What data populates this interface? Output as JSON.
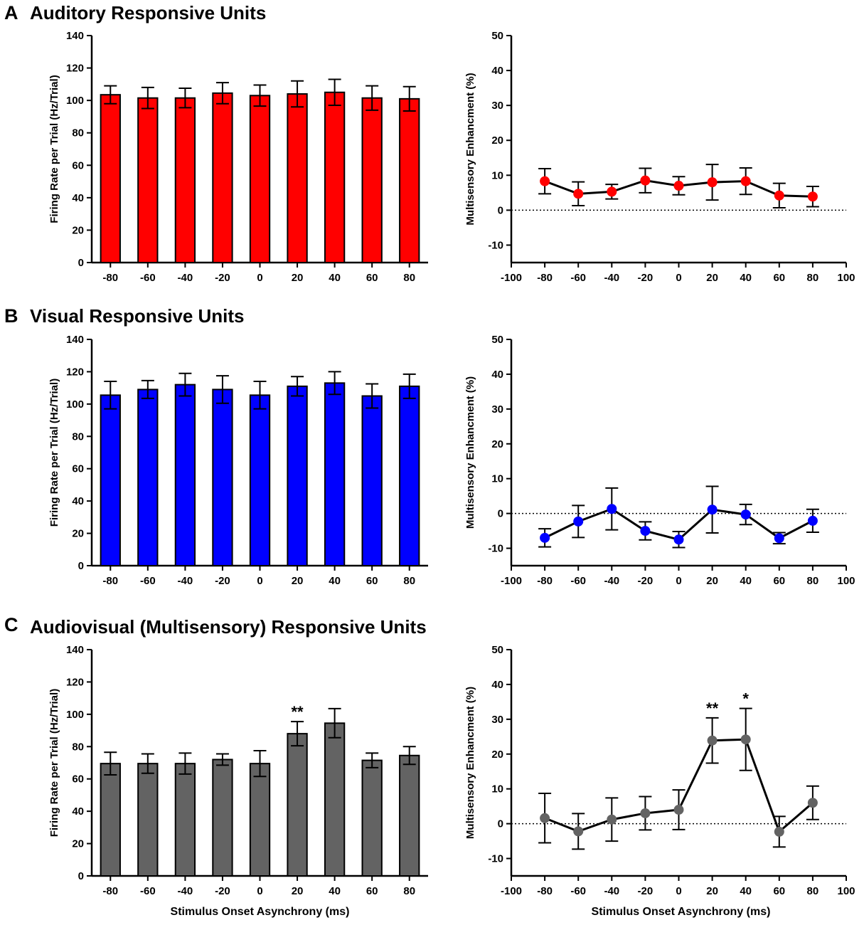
{
  "panels": [
    {
      "letter": "A",
      "title": "Auditory Responsive Units",
      "color": "#ff0000",
      "bar": {
        "type": "bar",
        "ylabel": "Firing Rate per Trial (Hz/Trial)",
        "xlabel": "",
        "ylim": [
          0,
          140
        ],
        "yticks": [
          0,
          20,
          40,
          60,
          80,
          100,
          120,
          140
        ],
        "categories": [
          "-80",
          "-60",
          "-40",
          "-20",
          "0",
          "20",
          "40",
          "60",
          "80"
        ],
        "values": [
          103.5,
          101.5,
          101.5,
          104.5,
          103,
          104,
          105,
          101.5,
          101
        ],
        "errors": [
          5.5,
          6.5,
          6,
          6.5,
          6.5,
          8,
          8,
          7.5,
          7.5
        ],
        "annotations": [
          "",
          "",
          "",
          "",
          "",
          "",
          "",
          "",
          ""
        ]
      },
      "line": {
        "type": "line",
        "ylabel": "Multisensory Enhancment (%)",
        "xlabel": "",
        "xlim": [
          -100,
          100
        ],
        "ylim": [
          -15,
          50
        ],
        "xticks": [
          -100,
          -80,
          -60,
          -40,
          -20,
          0,
          20,
          40,
          60,
          80,
          100
        ],
        "yticks": [
          -10,
          0,
          10,
          20,
          30,
          40,
          50
        ],
        "x": [
          -80,
          -60,
          -40,
          -20,
          0,
          20,
          40,
          60,
          80
        ],
        "y": [
          8.3,
          4.7,
          5.3,
          8.5,
          7,
          8,
          8.3,
          4.2,
          3.9
        ],
        "errors": [
          3.6,
          3.4,
          2.1,
          3.5,
          2.6,
          5.1,
          3.8,
          3.5,
          2.9
        ],
        "annotations": [
          "",
          "",
          "",
          "",
          "",
          "",
          "",
          "",
          ""
        ]
      }
    },
    {
      "letter": "B",
      "title": "Visual Responsive Units",
      "color": "#0000ff",
      "bar": {
        "type": "bar",
        "ylabel": "Firing Rate per Trial (Hz/Trial)",
        "xlabel": "",
        "ylim": [
          0,
          140
        ],
        "yticks": [
          0,
          20,
          40,
          60,
          80,
          100,
          120,
          140
        ],
        "categories": [
          "-80",
          "-60",
          "-40",
          "-20",
          "0",
          "20",
          "40",
          "60",
          "80"
        ],
        "values": [
          105.5,
          109,
          112,
          109,
          105.5,
          111,
          113,
          105,
          111
        ],
        "errors": [
          8.5,
          5.5,
          7,
          8.5,
          8.5,
          6,
          7,
          7.5,
          7.5
        ],
        "annotations": [
          "",
          "",
          "",
          "",
          "",
          "",
          "",
          "",
          ""
        ]
      },
      "line": {
        "type": "line",
        "ylabel": "Multisensory Enhancment (%)",
        "xlabel": "",
        "xlim": [
          -100,
          100
        ],
        "ylim": [
          -15,
          50
        ],
        "xticks": [
          -100,
          -80,
          -60,
          -40,
          -20,
          0,
          20,
          40,
          60,
          80,
          100
        ],
        "yticks": [
          -10,
          0,
          10,
          20,
          30,
          40,
          50
        ],
        "x": [
          -80,
          -60,
          -40,
          -20,
          0,
          20,
          40,
          60,
          80
        ],
        "y": [
          -7,
          -2.3,
          1.3,
          -5,
          -7.5,
          1.1,
          -0.3,
          -7.1,
          -2.1
        ],
        "errors": [
          2.6,
          4.6,
          6,
          2.6,
          2.3,
          6.7,
          2.9,
          1.6,
          3.3
        ],
        "annotations": [
          "",
          "",
          "",
          "",
          "",
          "",
          "",
          "",
          ""
        ]
      }
    },
    {
      "letter": "C",
      "title": "Audiovisual (Multisensory) Responsive Units",
      "color": "#636363",
      "bar": {
        "type": "bar",
        "ylabel": "Firing Rate per Trial (Hz/Trial)",
        "xlabel": "Stimulus Onset Asynchrony (ms)",
        "ylim": [
          0,
          140
        ],
        "yticks": [
          0,
          20,
          40,
          60,
          80,
          100,
          120,
          140
        ],
        "categories": [
          "-80",
          "-60",
          "-40",
          "-20",
          "0",
          "20",
          "40",
          "60",
          "80"
        ],
        "values": [
          69.5,
          69.5,
          69.5,
          72,
          69.5,
          88,
          94.5,
          71.5,
          74.5
        ],
        "errors": [
          7,
          6,
          6.5,
          3.5,
          8,
          7.5,
          9,
          4.5,
          5.5
        ],
        "annotations": [
          "",
          "",
          "",
          "",
          "",
          "**",
          "",
          "",
          ""
        ]
      },
      "line": {
        "type": "line",
        "ylabel": "Multisensory Enhancment (%)",
        "xlabel": "Stimulus Onset Asynchrony (ms)",
        "xlim": [
          -100,
          100
        ],
        "ylim": [
          -15,
          50
        ],
        "xticks": [
          -100,
          -80,
          -60,
          -40,
          -20,
          0,
          20,
          40,
          60,
          80,
          100
        ],
        "yticks": [
          -10,
          0,
          10,
          20,
          30,
          40,
          50
        ],
        "x": [
          -80,
          -60,
          -40,
          -20,
          0,
          20,
          40,
          60,
          80
        ],
        "y": [
          1.6,
          -2.2,
          1.2,
          3,
          4,
          23.9,
          24.2,
          -2.3,
          6
        ],
        "errors": [
          7.1,
          5.1,
          6.2,
          4.8,
          5.7,
          6.5,
          8.9,
          4.4,
          4.8
        ],
        "annotations": [
          "",
          "",
          "",
          "",
          "",
          "**",
          "*",
          "",
          ""
        ]
      }
    }
  ]
}
